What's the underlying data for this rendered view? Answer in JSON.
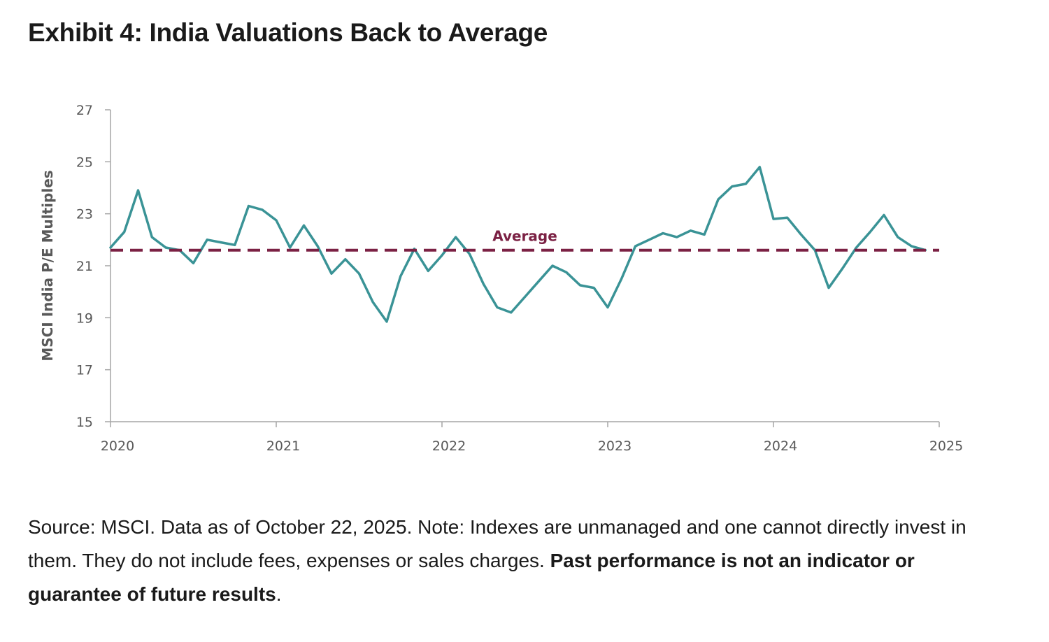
{
  "title": "Exhibit 4: India Valuations Back to Average",
  "chart_data": {
    "type": "line",
    "xlabel": "",
    "ylabel": "MSCI India P/E Multiples",
    "ylim": [
      15,
      27
    ],
    "xlim": [
      2020,
      2025
    ],
    "yticks": [
      15,
      17,
      19,
      21,
      23,
      25,
      27
    ],
    "xticks": [
      "2020",
      "2021",
      "2022",
      "2023",
      "2024",
      "2025"
    ],
    "series": [
      {
        "color": "#3a9396",
        "x": [
          2020.0,
          2020.0833,
          2020.1667,
          2020.25,
          2020.3333,
          2020.4167,
          2020.5,
          2020.5833,
          2020.6667,
          2020.75,
          2020.8333,
          2020.9167,
          2021.0,
          2021.0833,
          2021.1667,
          2021.25,
          2021.3333,
          2021.4167,
          2021.5,
          2021.5833,
          2021.6667,
          2021.75,
          2021.8333,
          2021.9167,
          2022.0,
          2022.0833,
          2022.1667,
          2022.25,
          2022.3333,
          2022.4167,
          2022.5,
          2022.5833,
          2022.6667,
          2022.75,
          2022.8333,
          2022.9167,
          2023.0,
          2023.0833,
          2023.1667,
          2023.25,
          2023.3333,
          2023.4167,
          2023.5,
          2023.5833,
          2023.6667,
          2023.75,
          2023.8333,
          2023.9167,
          2024.0,
          2024.0833,
          2024.1667,
          2024.25,
          2024.3333,
          2024.4167,
          2024.5,
          2024.5833,
          2024.6667,
          2024.75,
          2024.8333,
          2024.9167
        ],
        "values": [
          21.7,
          22.3,
          23.9,
          22.1,
          21.7,
          21.6,
          21.1,
          22.0,
          21.9,
          21.8,
          23.3,
          23.15,
          22.75,
          21.7,
          22.55,
          21.75,
          20.7,
          21.25,
          20.7,
          19.6,
          18.85,
          20.6,
          21.65,
          20.8,
          21.4,
          22.1,
          21.45,
          20.3,
          19.4,
          19.2,
          19.8,
          20.4,
          21.0,
          20.75,
          20.25,
          20.15,
          19.4,
          20.5,
          21.75,
          22.0,
          22.25,
          22.1,
          22.35,
          22.2,
          23.55,
          24.05,
          24.15,
          24.8,
          22.8,
          22.85,
          22.2,
          21.6,
          20.15,
          20.9,
          21.7,
          22.3,
          22.95,
          22.1,
          21.75,
          21.6
        ]
      },
      {
        "name": "Average",
        "color": "#7b2144",
        "style": "dashed",
        "x": [
          2020.0,
          2025.0
        ],
        "values": [
          21.6,
          21.6
        ]
      }
    ],
    "annotations": [
      {
        "text": "Average",
        "x": 2022.5,
        "y": 21.6
      }
    ],
    "grid": false,
    "legend": "none"
  },
  "footnote": {
    "plain": "Source: MSCI. Data as of October 22, 2025. Note: Indexes are unmanaged and one cannot directly invest in them. They do not include fees, expenses or sales charges. ",
    "bold": "Past performance is not an indicator or guarantee of future results",
    "end": "."
  }
}
